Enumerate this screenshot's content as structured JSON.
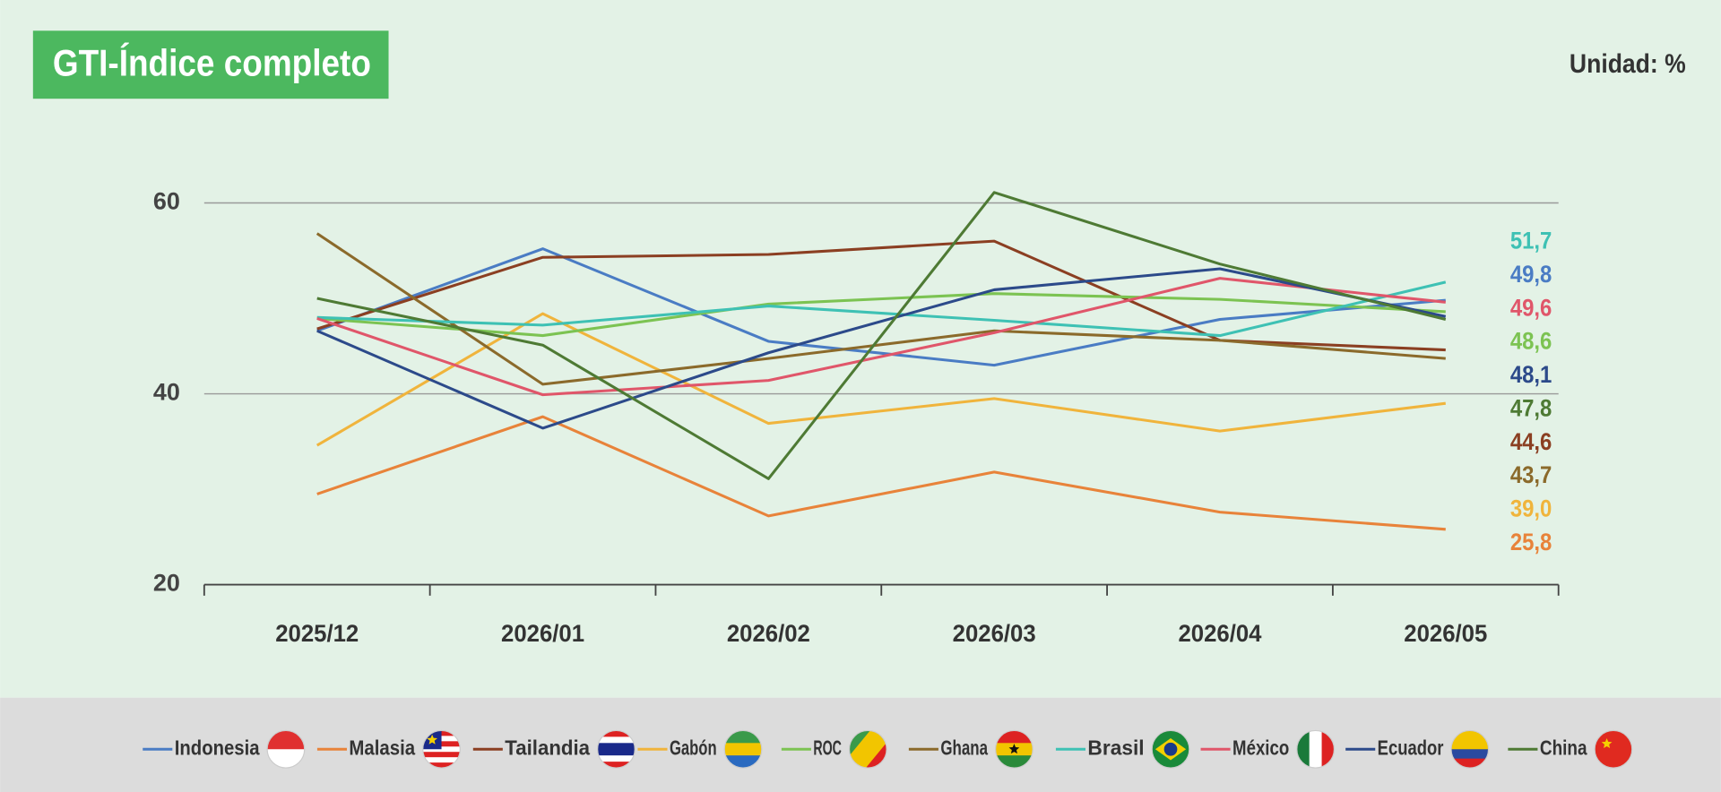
{
  "chart_data": {
    "type": "line",
    "title": "GTI-Índice completo",
    "unit_label": "Unidad: %",
    "categories": [
      "2025/12",
      "2026/01",
      "2026/02",
      "2026/03",
      "2026/04",
      "2026/05"
    ],
    "ylim": [
      20,
      60
    ],
    "yticks": [
      20,
      40,
      60
    ],
    "grid": true,
    "legend": "bottom",
    "series": [
      {
        "name": "Indonesia",
        "color": "#4a7cc4",
        "values": [
          46.6,
          55.2,
          45.5,
          43.0,
          47.8,
          49.8
        ],
        "value_labels": [
          null,
          null,
          null,
          null,
          null,
          "49,8"
        ]
      },
      {
        "name": "Malasia",
        "color": "#e8833a",
        "values": [
          29.5,
          37.6,
          27.2,
          31.8,
          27.6,
          25.8
        ],
        "value_labels": [
          null,
          null,
          null,
          null,
          null,
          "25,8"
        ]
      },
      {
        "name": "Tailandia",
        "color": "#8b3f22",
        "values": [
          46.8,
          54.3,
          54.6,
          56.0,
          45.6,
          44.6
        ],
        "value_labels": [
          null,
          null,
          null,
          null,
          null,
          "44,6"
        ]
      },
      {
        "name": "Gabón",
        "color": "#f0b43c",
        "values": [
          34.6,
          48.4,
          36.9,
          39.5,
          36.1,
          39.0
        ],
        "value_labels": [
          null,
          null,
          null,
          null,
          null,
          "39,0"
        ]
      },
      {
        "name": "ROC",
        "color": "#7cc352",
        "values": [
          47.9,
          46.1,
          49.4,
          50.5,
          49.9,
          48.6
        ],
        "value_labels": [
          null,
          null,
          null,
          null,
          null,
          "48,6"
        ]
      },
      {
        "name": "Ghana",
        "color": "#8b6a2b",
        "values": [
          56.8,
          41.0,
          43.7,
          46.6,
          45.6,
          43.7
        ],
        "value_labels": [
          null,
          null,
          null,
          null,
          null,
          "43,7"
        ]
      },
      {
        "name": "Brasil",
        "color": "#3ec1b4",
        "values": [
          48.0,
          47.2,
          49.2,
          47.7,
          46.1,
          51.7
        ],
        "value_labels": [
          null,
          null,
          null,
          null,
          null,
          "51,7"
        ]
      },
      {
        "name": "México",
        "color": "#e0566a",
        "values": [
          47.9,
          39.9,
          41.4,
          46.4,
          52.1,
          49.6
        ],
        "value_labels": [
          null,
          null,
          null,
          null,
          null,
          "49,6"
        ]
      },
      {
        "name": "Ecuador",
        "color": "#2c4a8a",
        "values": [
          46.6,
          36.4,
          44.3,
          50.9,
          53.1,
          48.1
        ],
        "value_labels": [
          null,
          null,
          null,
          null,
          null,
          "48,1"
        ]
      },
      {
        "name": "China",
        "color": "#4e7a34",
        "values": [
          50.0,
          45.1,
          31.1,
          61.1,
          53.6,
          47.8
        ],
        "value_labels": [
          null,
          null,
          null,
          null,
          null,
          "47,8"
        ]
      }
    ]
  }
}
